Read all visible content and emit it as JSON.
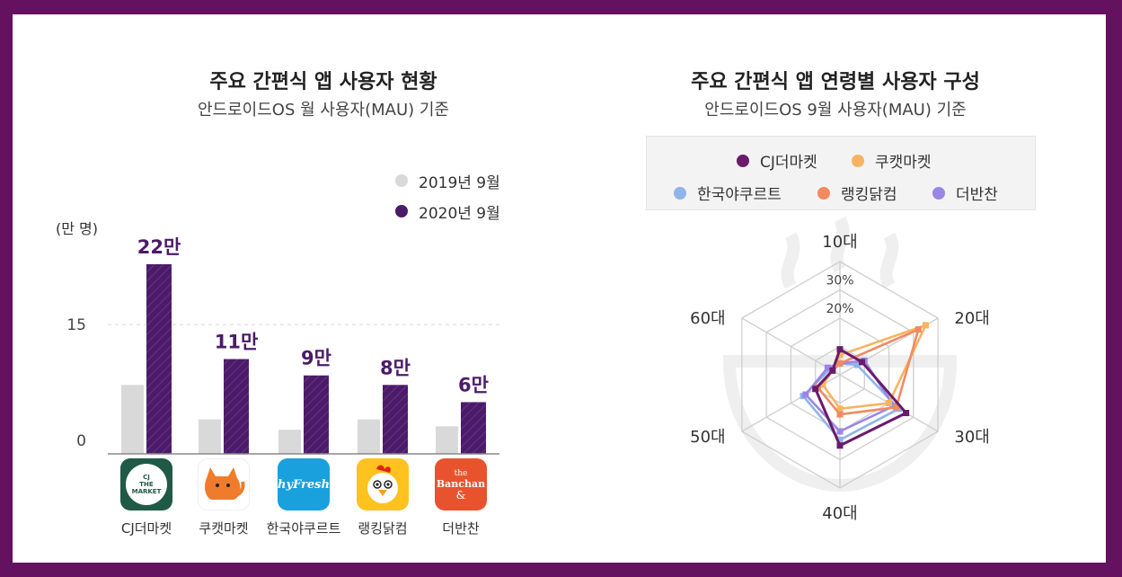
{
  "left_panel": {
    "title": "주요 간편식 앱 사용자 현황",
    "subtitle": "안드로이드OS 월 사용자(MAU) 기준"
  },
  "right_panel": {
    "title": "주요 간편식 앱 연령별 사용자 구성",
    "subtitle": "안드로이드OS 9월 사용자(MAU) 기준"
  },
  "colors": {
    "frame": "#64115f",
    "bar_2020": "#4b1b68",
    "bar_2019": "#d9d9d9",
    "cj": "#6b1b6b",
    "kukat": "#f6b461",
    "hy": "#8fb4ea",
    "ranking": "#f28a60",
    "banchan": "#9a86e6"
  },
  "apps": [
    {
      "name": "CJ더마켓",
      "icon": "cj-the-market-icon"
    },
    {
      "name": "쿠캣마켓",
      "icon": "cat-icon"
    },
    {
      "name": "한국야쿠르트",
      "icon": "hy-fresh-icon"
    },
    {
      "name": "랭킹닭컴",
      "icon": "chicken-icon"
    },
    {
      "name": "더반찬",
      "icon": "the-banchan-icon"
    }
  ],
  "icon_texts": {
    "cj": [
      "CJ",
      "THE",
      "MARKET"
    ],
    "hy": "hyFresh",
    "banchan": [
      "the",
      "Banchan",
      "&"
    ]
  },
  "chart_data": [
    {
      "type": "bar",
      "title": "주요 간편식 앱 사용자 현황",
      "subtitle": "안드로이드OS 월 사용자(MAU) 기준",
      "ylabel": "(만 명)",
      "ylim": [
        0,
        22
      ],
      "yticks": [
        0,
        15
      ],
      "categories": [
        "CJ더마켓",
        "쿠캣마켓",
        "한국야쿠르트",
        "랭킹닭컴",
        "더반찬"
      ],
      "series": [
        {
          "name": "2019년 9월",
          "values": [
            8,
            4,
            2.8,
            4,
            3.2
          ]
        },
        {
          "name": "2020년 9월",
          "values": [
            22,
            11,
            9.1,
            8,
            6
          ]
        }
      ],
      "data_labels": [
        "22만",
        "11만",
        "9만",
        "8만",
        "6만"
      ],
      "legend_position": "top-right"
    },
    {
      "type": "radar",
      "title": "주요 간편식 앱 연령별 사용자 구성",
      "subtitle": "안드로이드OS 9월 사용자(MAU) 기준",
      "axes": [
        "10대",
        "20대",
        "30대",
        "40대",
        "50대",
        "60대"
      ],
      "rlim": [
        0,
        40
      ],
      "ring_labels": [
        "20%",
        "30%"
      ],
      "ring_values": [
        20,
        30
      ],
      "series": [
        {
          "name": "CJ더마켓",
          "values": [
            9,
            9,
            27,
            25,
            10,
            3
          ]
        },
        {
          "name": "쿠캣마켓",
          "values": [
            7,
            35,
            20,
            12,
            7,
            3
          ]
        },
        {
          "name": "한국야쿠르트",
          "values": [
            4,
            7,
            24,
            23,
            15,
            4
          ]
        },
        {
          "name": "랭킹닭컴",
          "values": [
            4,
            32,
            23,
            14,
            9,
            3
          ]
        },
        {
          "name": "더반찬",
          "values": [
            4,
            10,
            22,
            20,
            14,
            5
          ]
        }
      ],
      "legend_position": "top"
    }
  ]
}
